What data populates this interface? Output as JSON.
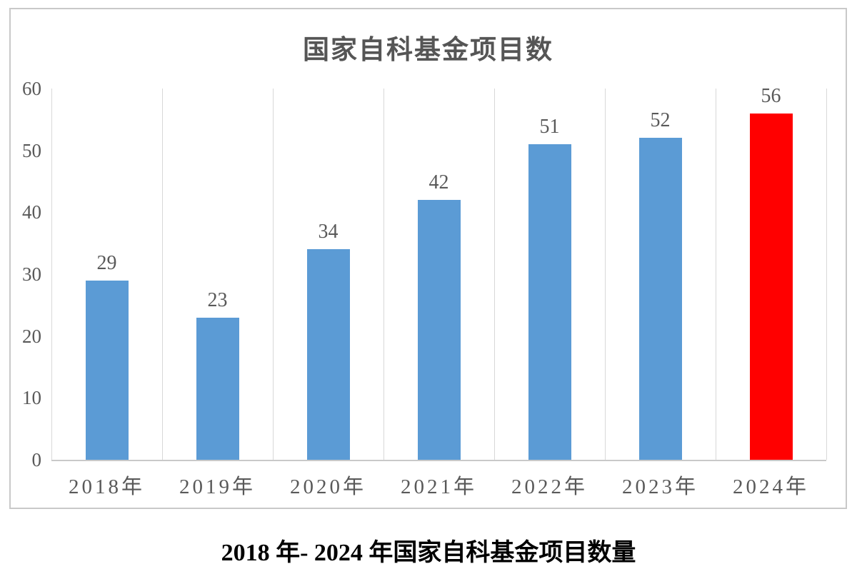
{
  "chart_data": {
    "type": "bar",
    "title": "国家自科基金项目数",
    "categories": [
      "2018年",
      "2019年",
      "2020年",
      "2021年",
      "2022年",
      "2023年",
      "2024年"
    ],
    "values": [
      29,
      23,
      34,
      42,
      51,
      52,
      56
    ],
    "bar_colors": [
      "#5b9bd5",
      "#5b9bd5",
      "#5b9bd5",
      "#5b9bd5",
      "#5b9bd5",
      "#5b9bd5",
      "#ff0000"
    ],
    "data_labels": [
      29,
      23,
      34,
      42,
      51,
      52,
      56
    ],
    "xlabel": "",
    "ylabel": "",
    "ylim": [
      0,
      60
    ],
    "yticks": [
      0,
      10,
      20,
      30,
      40,
      50,
      60
    ],
    "grid": "vertical category separators only",
    "legend_position": "none"
  },
  "caption": "2018 年- 2024 年国家自科基金项目数量",
  "colors": {
    "bar_blue": "#5b9bd5",
    "bar_red": "#ff0000",
    "axis_text": "#595959",
    "title_text": "#555555",
    "caption_text": "#000000",
    "gridline": "#d8d8d8",
    "frame_border": "#c9c9c9",
    "background": "#ffffff"
  }
}
